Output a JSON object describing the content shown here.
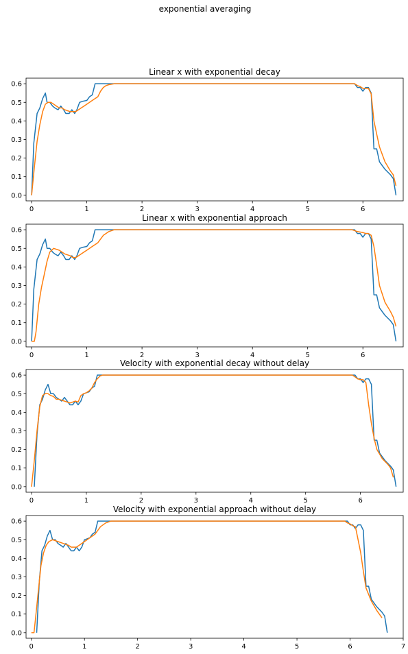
{
  "figure_title": "exponential averaging",
  "colors": {
    "series_1": "#1f77b4",
    "series_2": "#ff7f0e"
  },
  "chart_data": [
    {
      "type": "line",
      "title": "Linear x with exponential decay",
      "xlim": [
        -0.1,
        6.73
      ],
      "ylim": [
        -0.03,
        0.63
      ],
      "xticks": [
        0,
        1,
        2,
        3,
        4,
        5,
        6
      ],
      "yticks": [
        0.0,
        0.1,
        0.2,
        0.3,
        0.4,
        0.5,
        0.6
      ],
      "series": [
        {
          "x": [
            0,
            0.04,
            0.1,
            0.15,
            0.2,
            0.25,
            0.28,
            0.33,
            0.38,
            0.42,
            0.48,
            0.53,
            0.58,
            0.62,
            0.68,
            0.73,
            0.78,
            0.82,
            0.87,
            0.92,
            1.0,
            1.05,
            1.1,
            1.15,
            1.2,
            1.23,
            1.3,
            1.4,
            1.5,
            2,
            3,
            4,
            5,
            5.8,
            5.85,
            5.9,
            5.95,
            6.0,
            6.05,
            6.1,
            6.15,
            6.2,
            6.25,
            6.3,
            6.4,
            6.5,
            6.55,
            6.6
          ],
          "y": [
            0,
            0.28,
            0.44,
            0.47,
            0.52,
            0.55,
            0.5,
            0.5,
            0.48,
            0.47,
            0.46,
            0.48,
            0.46,
            0.44,
            0.44,
            0.46,
            0.44,
            0.46,
            0.5,
            0.505,
            0.51,
            0.53,
            0.54,
            0.6,
            0.6,
            0.6,
            0.6,
            0.6,
            0.6,
            0.6,
            0.6,
            0.6,
            0.6,
            0.6,
            0.6,
            0.58,
            0.58,
            0.56,
            0.58,
            0.58,
            0.55,
            0.25,
            0.25,
            0.18,
            0.14,
            0.11,
            0.09,
            0.0
          ]
        },
        {
          "x": [
            0,
            0.05,
            0.1,
            0.15,
            0.2,
            0.25,
            0.3,
            0.35,
            0.4,
            0.45,
            0.5,
            0.55,
            0.6,
            0.65,
            0.7,
            0.75,
            0.8,
            0.85,
            0.9,
            0.95,
            1.0,
            1.05,
            1.1,
            1.15,
            1.2,
            1.25,
            1.3,
            1.35,
            1.4,
            1.5,
            1.6,
            2,
            3,
            4,
            5,
            5.7,
            5.8,
            5.85,
            5.9,
            5.95,
            6.0,
            6.05,
            6.1,
            6.15,
            6.2,
            6.25,
            6.3,
            6.4,
            6.5,
            6.55,
            6.6
          ],
          "y": [
            0,
            0.15,
            0.29,
            0.38,
            0.45,
            0.49,
            0.5,
            0.5,
            0.49,
            0.48,
            0.47,
            0.47,
            0.46,
            0.455,
            0.45,
            0.45,
            0.45,
            0.46,
            0.47,
            0.48,
            0.49,
            0.5,
            0.51,
            0.52,
            0.53,
            0.56,
            0.58,
            0.59,
            0.595,
            0.6,
            0.6,
            0.6,
            0.6,
            0.6,
            0.6,
            0.6,
            0.6,
            0.6,
            0.59,
            0.585,
            0.575,
            0.575,
            0.575,
            0.545,
            0.4,
            0.33,
            0.26,
            0.18,
            0.13,
            0.11,
            0.05
          ]
        }
      ]
    },
    {
      "type": "line",
      "title": "Linear x with exponential approach",
      "xlim": [
        -0.1,
        6.73
      ],
      "ylim": [
        -0.03,
        0.63
      ],
      "xticks": [
        0,
        1,
        2,
        3,
        4,
        5,
        6
      ],
      "yticks": [
        0.0,
        0.1,
        0.2,
        0.3,
        0.4,
        0.5,
        0.6
      ],
      "series": [
        {
          "x": [
            0,
            0.04,
            0.1,
            0.15,
            0.2,
            0.25,
            0.28,
            0.33,
            0.38,
            0.42,
            0.48,
            0.53,
            0.58,
            0.62,
            0.68,
            0.73,
            0.78,
            0.82,
            0.87,
            0.92,
            1.0,
            1.05,
            1.1,
            1.15,
            1.2,
            1.23,
            1.3,
            1.4,
            1.5,
            2,
            3,
            4,
            5,
            5.8,
            5.85,
            5.9,
            5.95,
            6.0,
            6.05,
            6.1,
            6.15,
            6.2,
            6.25,
            6.3,
            6.4,
            6.5,
            6.55,
            6.6
          ],
          "y": [
            0,
            0.28,
            0.44,
            0.47,
            0.52,
            0.55,
            0.5,
            0.5,
            0.48,
            0.47,
            0.46,
            0.48,
            0.46,
            0.44,
            0.44,
            0.46,
            0.44,
            0.46,
            0.5,
            0.505,
            0.51,
            0.53,
            0.54,
            0.6,
            0.6,
            0.6,
            0.6,
            0.6,
            0.6,
            0.6,
            0.6,
            0.6,
            0.6,
            0.6,
            0.6,
            0.58,
            0.58,
            0.56,
            0.58,
            0.58,
            0.55,
            0.25,
            0.25,
            0.18,
            0.14,
            0.11,
            0.09,
            0.0
          ]
        },
        {
          "x": [
            0,
            0.05,
            0.08,
            0.13,
            0.18,
            0.23,
            0.28,
            0.33,
            0.4,
            0.5,
            0.6,
            0.7,
            0.75,
            0.8,
            0.85,
            0.9,
            1.0,
            1.1,
            1.2,
            1.3,
            1.4,
            1.5,
            1.6,
            2,
            3,
            4,
            5,
            5.8,
            5.9,
            6.0,
            6.05,
            6.1,
            6.15,
            6.2,
            6.25,
            6.3,
            6.4,
            6.5,
            6.55,
            6.6
          ],
          "y": [
            0,
            0,
            0.05,
            0.2,
            0.29,
            0.36,
            0.43,
            0.48,
            0.5,
            0.49,
            0.47,
            0.46,
            0.45,
            0.45,
            0.46,
            0.47,
            0.49,
            0.51,
            0.53,
            0.57,
            0.59,
            0.6,
            0.6,
            0.6,
            0.6,
            0.6,
            0.6,
            0.6,
            0.59,
            0.585,
            0.58,
            0.58,
            0.57,
            0.51,
            0.41,
            0.3,
            0.21,
            0.16,
            0.13,
            0.08
          ]
        }
      ]
    },
    {
      "type": "line",
      "title": "Velocity with exponential decay without delay",
      "xlim": [
        -0.1,
        6.78
      ],
      "ylim": [
        -0.03,
        0.63
      ],
      "xticks": [
        0,
        1,
        2,
        3,
        4,
        5,
        6
      ],
      "yticks": [
        0.0,
        0.1,
        0.2,
        0.3,
        0.4,
        0.5,
        0.6
      ],
      "series": [
        {
          "x": [
            0.05,
            0.1,
            0.15,
            0.2,
            0.25,
            0.3,
            0.35,
            0.4,
            0.45,
            0.5,
            0.55,
            0.6,
            0.65,
            0.7,
            0.75,
            0.8,
            0.85,
            0.9,
            0.95,
            1.0,
            1.05,
            1.1,
            1.15,
            1.2,
            1.25,
            1.3,
            1.4,
            1.5,
            2,
            3,
            4,
            5,
            5.9,
            5.95,
            6.0,
            6.05,
            6.1,
            6.15,
            6.2,
            6.25,
            6.3,
            6.35,
            6.45,
            6.55,
            6.6,
            6.65
          ],
          "y": [
            0,
            0.28,
            0.44,
            0.47,
            0.52,
            0.55,
            0.5,
            0.5,
            0.48,
            0.47,
            0.46,
            0.48,
            0.46,
            0.44,
            0.44,
            0.46,
            0.44,
            0.46,
            0.5,
            0.505,
            0.51,
            0.53,
            0.54,
            0.6,
            0.6,
            0.6,
            0.6,
            0.6,
            0.6,
            0.6,
            0.6,
            0.6,
            0.6,
            0.58,
            0.58,
            0.56,
            0.58,
            0.58,
            0.55,
            0.25,
            0.25,
            0.18,
            0.14,
            0.11,
            0.09,
            0.0
          ]
        },
        {
          "x": [
            0,
            0.05,
            0.1,
            0.15,
            0.2,
            0.25,
            0.3,
            0.35,
            0.4,
            0.45,
            0.5,
            0.55,
            0.6,
            0.65,
            0.7,
            0.75,
            0.8,
            0.85,
            0.9,
            0.95,
            1.0,
            1.05,
            1.1,
            1.15,
            1.2,
            1.25,
            1.3,
            1.4,
            1.5,
            2,
            3,
            4,
            5,
            5.85,
            5.9,
            5.95,
            6.0,
            6.05,
            6.1,
            6.15,
            6.2,
            6.25,
            6.3,
            6.4,
            6.5,
            6.55,
            6.6
          ],
          "y": [
            0,
            0.14,
            0.3,
            0.43,
            0.49,
            0.5,
            0.5,
            0.49,
            0.485,
            0.47,
            0.47,
            0.465,
            0.46,
            0.455,
            0.45,
            0.455,
            0.46,
            0.455,
            0.49,
            0.5,
            0.505,
            0.515,
            0.53,
            0.56,
            0.58,
            0.595,
            0.6,
            0.6,
            0.6,
            0.6,
            0.6,
            0.6,
            0.6,
            0.6,
            0.59,
            0.58,
            0.575,
            0.575,
            0.56,
            0.44,
            0.34,
            0.26,
            0.2,
            0.15,
            0.12,
            0.1,
            0.05
          ]
        }
      ]
    },
    {
      "type": "line",
      "title": "Velocity with exponential approach without delay",
      "xlim": [
        -0.1,
        7.0
      ],
      "ylim": [
        -0.03,
        0.63
      ],
      "xticks": [
        0,
        1,
        2,
        3,
        4,
        5,
        6,
        7
      ],
      "yticks": [
        0.0,
        0.1,
        0.2,
        0.3,
        0.4,
        0.5,
        0.6
      ],
      "series": [
        {
          "x": [
            0.1,
            0.15,
            0.2,
            0.25,
            0.3,
            0.35,
            0.4,
            0.45,
            0.5,
            0.55,
            0.6,
            0.65,
            0.7,
            0.75,
            0.8,
            0.85,
            0.9,
            0.95,
            1.0,
            1.05,
            1.1,
            1.15,
            1.2,
            1.25,
            1.3,
            1.35,
            1.45,
            1.55,
            2,
            3,
            4,
            5,
            5.95,
            6.0,
            6.05,
            6.1,
            6.15,
            6.2,
            6.25,
            6.3,
            6.35,
            6.4,
            6.5,
            6.6,
            6.65,
            6.7
          ],
          "y": [
            0,
            0.28,
            0.44,
            0.47,
            0.52,
            0.55,
            0.5,
            0.5,
            0.48,
            0.47,
            0.46,
            0.48,
            0.46,
            0.44,
            0.44,
            0.46,
            0.44,
            0.46,
            0.5,
            0.505,
            0.51,
            0.53,
            0.54,
            0.6,
            0.6,
            0.6,
            0.6,
            0.6,
            0.6,
            0.6,
            0.6,
            0.6,
            0.6,
            0.58,
            0.58,
            0.56,
            0.58,
            0.58,
            0.55,
            0.25,
            0.25,
            0.18,
            0.14,
            0.11,
            0.09,
            0.0
          ]
        },
        {
          "x": [
            0,
            0.05,
            0.08,
            0.13,
            0.18,
            0.23,
            0.28,
            0.33,
            0.4,
            0.5,
            0.6,
            0.7,
            0.75,
            0.8,
            0.85,
            0.9,
            1.0,
            1.1,
            1.2,
            1.3,
            1.4,
            1.5,
            1.6,
            2,
            3,
            4,
            5,
            5.9,
            5.95,
            6.0,
            6.05,
            6.1,
            6.15,
            6.2,
            6.25,
            6.3,
            6.4,
            6.5,
            6.6
          ],
          "y": [
            0,
            0,
            0.08,
            0.22,
            0.36,
            0.43,
            0.47,
            0.49,
            0.5,
            0.49,
            0.48,
            0.47,
            0.46,
            0.46,
            0.46,
            0.47,
            0.49,
            0.51,
            0.53,
            0.57,
            0.59,
            0.6,
            0.6,
            0.6,
            0.6,
            0.6,
            0.6,
            0.6,
            0.59,
            0.585,
            0.575,
            0.57,
            0.5,
            0.43,
            0.33,
            0.24,
            0.17,
            0.12,
            0.08
          ]
        }
      ]
    }
  ]
}
